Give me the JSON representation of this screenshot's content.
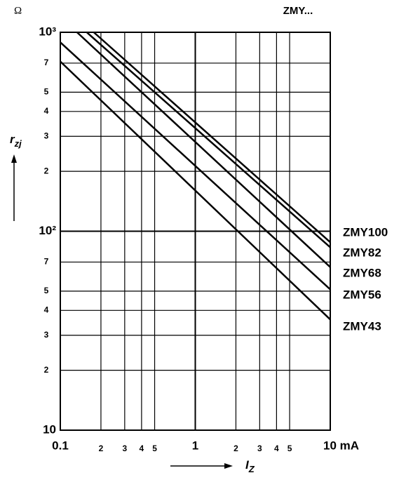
{
  "chart_data": {
    "type": "line",
    "title": "ZMY...",
    "y_unit": "Ω",
    "y_label": {
      "main": "r",
      "sub": "zj"
    },
    "x_label": {
      "main": "I",
      "sub": "Z"
    },
    "log_x": true,
    "log_y": true,
    "grid": true,
    "xlim": [
      0.1,
      10
    ],
    "ylim": [
      10,
      1000
    ],
    "xticks": [
      0.1,
      {
        "value": 0.2,
        "label": "2"
      },
      {
        "value": 0.3,
        "label": "3"
      },
      {
        "value": 0.4,
        "label": "4"
      },
      {
        "value": 0.5,
        "label": "5"
      },
      1,
      {
        "value": 2,
        "label": "2"
      },
      {
        "value": 3,
        "label": "3"
      },
      {
        "value": 4,
        "label": "4"
      },
      {
        "value": 5,
        "label": "5"
      },
      {
        "value": 10,
        "label": "10 mA"
      }
    ],
    "yticks": [
      10,
      {
        "value": 20,
        "label": "2"
      },
      {
        "value": 30,
        "label": "3"
      },
      {
        "value": 40,
        "label": "4"
      },
      {
        "value": 50,
        "label": "5"
      },
      {
        "value": 70,
        "label": "7"
      },
      {
        "value": 100,
        "label": "10²"
      },
      {
        "value": 200,
        "label": "2"
      },
      {
        "value": 300,
        "label": "3"
      },
      {
        "value": 400,
        "label": "4"
      },
      {
        "value": 500,
        "label": "5"
      },
      {
        "value": 700,
        "label": "7"
      },
      {
        "value": 1000,
        "label": "10³"
      }
    ],
    "series": [
      {
        "name": "ZMY100",
        "color": "#000000",
        "x": [
          0.177,
          10
        ],
        "values": [
          1000,
          88
        ]
      },
      {
        "name": "ZMY82",
        "color": "#000000",
        "x": [
          0.157,
          10
        ],
        "values": [
          1000,
          83
        ]
      },
      {
        "name": "ZMY68",
        "color": "#000000",
        "x": [
          0.133,
          10
        ],
        "values": [
          1000,
          66
        ]
      },
      {
        "name": "ZMY56",
        "color": "#000000",
        "x": [
          0.1,
          10
        ],
        "values": [
          890,
          51
        ]
      },
      {
        "name": "ZMY43",
        "color": "#000000",
        "x": [
          0.1,
          10
        ],
        "values": [
          713,
          36
        ]
      }
    ]
  }
}
